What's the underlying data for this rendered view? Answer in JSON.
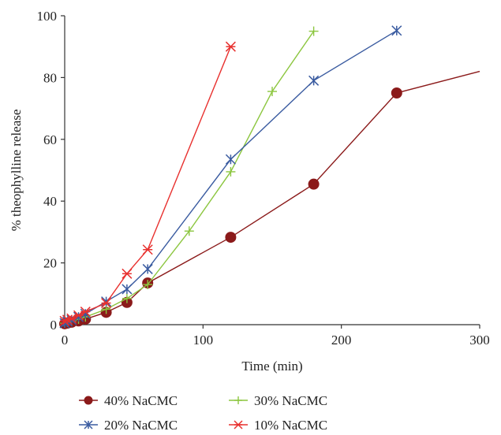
{
  "chart_data": {
    "type": "line",
    "xlabel": "Time (min)",
    "ylabel": "% theophylline release",
    "xlim": [
      0,
      300
    ],
    "ylim": [
      0,
      100
    ],
    "xticks": [
      "0",
      "100",
      "200",
      "300"
    ],
    "yticks": [
      "0",
      "20",
      "40",
      "60",
      "80",
      "100"
    ],
    "grid": false,
    "legend_position": "bottom",
    "series": [
      {
        "name": "40% NaCMC",
        "color": "#8b1a1a",
        "marker": "circle",
        "points": [
          [
            0,
            0.3
          ],
          [
            2,
            0.5
          ],
          [
            5,
            0.8
          ],
          [
            10,
            1.2
          ],
          [
            15,
            1.8
          ],
          [
            30,
            4
          ],
          [
            45,
            7.2
          ],
          [
            60,
            13.5
          ],
          [
            120,
            28.3
          ],
          [
            180,
            45.5
          ],
          [
            240,
            75
          ],
          [
            300,
            82
          ]
        ],
        "marker_count": 11
      },
      {
        "name": "30% NaCMC",
        "color": "#8cc63f",
        "marker": "plus",
        "points": [
          [
            0,
            0.5
          ],
          [
            2,
            0.8
          ],
          [
            5,
            1.2
          ],
          [
            10,
            1.8
          ],
          [
            15,
            2.5
          ],
          [
            30,
            5
          ],
          [
            45,
            8.5
          ],
          [
            60,
            13
          ],
          [
            90,
            30.3
          ],
          [
            120,
            49.5
          ],
          [
            150,
            75.5
          ],
          [
            180,
            95
          ]
        ]
      },
      {
        "name": "20% NaCMC",
        "color": "#3a5ba0",
        "marker": "asterisk",
        "points": [
          [
            0,
            0.5
          ],
          [
            2,
            1
          ],
          [
            5,
            1.5
          ],
          [
            10,
            2.5
          ],
          [
            15,
            3.5
          ],
          [
            30,
            7.5
          ],
          [
            45,
            11.5
          ],
          [
            60,
            18
          ],
          [
            120,
            53.5
          ],
          [
            180,
            79
          ],
          [
            240,
            95.2
          ]
        ]
      },
      {
        "name": "10% NaCMC",
        "color": "#e8312f",
        "marker": "star",
        "points": [
          [
            0,
            1.2
          ],
          [
            2,
            1.6
          ],
          [
            5,
            2
          ],
          [
            10,
            3
          ],
          [
            15,
            4.2
          ],
          [
            30,
            7
          ],
          [
            45,
            16.5
          ],
          [
            60,
            24.3
          ],
          [
            120,
            90
          ]
        ]
      }
    ]
  }
}
